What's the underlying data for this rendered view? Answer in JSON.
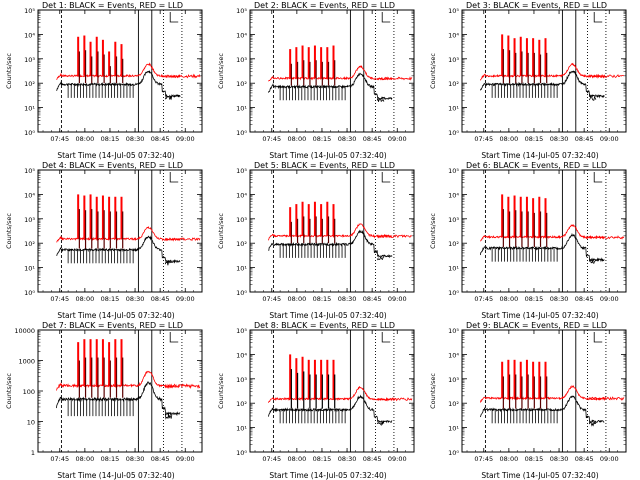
{
  "figure": {
    "xlabel": "Start Time (14-Jul-05 07:32:40)",
    "ylabel": "Counts/sec",
    "x_tick_labels": [
      "07:45",
      "08:00",
      "08:15",
      "08:30",
      "08:45",
      "09:00"
    ],
    "y_tick_labels_exp": [
      "10⁰",
      "10¹",
      "10²",
      "10³",
      "10⁴",
      "10⁵"
    ],
    "y_tick_labels_plain": [
      "1",
      "10",
      "100",
      "1000",
      "10000"
    ],
    "colors": {
      "events": "#000000",
      "lld": "#ff0000",
      "axes": "#000000"
    }
  },
  "chart_data": [
    {
      "type": "line",
      "title": "Det 1: BLACK = Events, RED = LLD",
      "ylog": true,
      "ylim": [
        1,
        100000
      ],
      "xlim": [
        "07:32",
        "09:10"
      ],
      "events_base": 100,
      "lld_base": 200,
      "peaks": [
        8000,
        9000,
        5000,
        8000,
        6000,
        2000,
        5000,
        4000
      ],
      "spike_style": "red",
      "series": [
        {
          "name": "Events",
          "color": "#000000"
        },
        {
          "name": "LLD",
          "color": "#ff0000"
        }
      ]
    },
    {
      "type": "line",
      "title": "Det 2: BLACK = Events, RED = LLD",
      "ylog": true,
      "ylim": [
        1,
        100000
      ],
      "xlim": [
        "07:32",
        "09:10"
      ],
      "events_base": 80,
      "lld_base": 160,
      "peaks": [
        2500,
        3000,
        3500,
        3000,
        3500,
        3000,
        3000,
        3500
      ],
      "spike_style": "red",
      "series": [
        {
          "name": "Events",
          "color": "#000000"
        },
        {
          "name": "LLD",
          "color": "#ff0000"
        }
      ]
    },
    {
      "type": "line",
      "title": "Det 3: BLACK = Events, RED = LLD",
      "ylog": true,
      "ylim": [
        1,
        100000
      ],
      "xlim": [
        "07:32",
        "09:10"
      ],
      "events_base": 100,
      "lld_base": 200,
      "peaks": [
        10000,
        9000,
        7000,
        8000,
        7000,
        7000,
        6000,
        7000
      ],
      "spike_style": "red",
      "series": [
        {
          "name": "Events",
          "color": "#000000"
        },
        {
          "name": "LLD",
          "color": "#ff0000"
        }
      ]
    },
    {
      "type": "line",
      "title": "Det 4: BLACK = Events, RED = LLD",
      "ylog": true,
      "ylim": [
        1,
        100000
      ],
      "xlim": [
        "07:32",
        "09:10"
      ],
      "events_base": 60,
      "lld_base": 150,
      "peaks": [
        10000,
        9000,
        10000,
        8000,
        9000,
        8000,
        8000,
        8000
      ],
      "spike_style": "red",
      "series": [
        {
          "name": "Events",
          "color": "#000000"
        },
        {
          "name": "LLD",
          "color": "#ff0000"
        }
      ]
    },
    {
      "type": "line",
      "title": "Det 5: BLACK = Events, RED = LLD",
      "ylog": true,
      "ylim": [
        1,
        100000
      ],
      "xlim": [
        "07:32",
        "09:10"
      ],
      "events_base": 100,
      "lld_base": 200,
      "peaks": [
        3000,
        4000,
        5000,
        4000,
        5000,
        4000,
        5000,
        4000
      ],
      "spike_style": "red",
      "series": [
        {
          "name": "Events",
          "color": "#000000"
        },
        {
          "name": "LLD",
          "color": "#ff0000"
        }
      ]
    },
    {
      "type": "line",
      "title": "Det 6: BLACK = Events, RED = LLD",
      "ylog": true,
      "ylim": [
        1,
        100000
      ],
      "xlim": [
        "07:32",
        "09:10"
      ],
      "events_base": 70,
      "lld_base": 180,
      "peaks": [
        10000,
        8000,
        9000,
        8000,
        8000,
        7000,
        8000,
        7000
      ],
      "spike_style": "red",
      "series": [
        {
          "name": "Events",
          "color": "#000000"
        },
        {
          "name": "LLD",
          "color": "#ff0000"
        }
      ]
    },
    {
      "type": "line",
      "title": "Det 7: BLACK = Events, RED = LLD",
      "ylog": true,
      "ylim": [
        1,
        10000
      ],
      "xlim": [
        "07:32",
        "09:10"
      ],
      "events_base": 60,
      "lld_base": 150,
      "peaks": [
        4000,
        5000,
        5000,
        5000,
        5000,
        4000,
        5000,
        5000
      ],
      "spike_style": "red",
      "series": [
        {
          "name": "Events",
          "color": "#000000"
        },
        {
          "name": "LLD",
          "color": "#ff0000"
        }
      ]
    },
    {
      "type": "line",
      "title": "Det 8: BLACK = Events, RED = LLD",
      "ylog": true,
      "ylim": [
        1,
        100000
      ],
      "xlim": [
        "07:32",
        "09:10"
      ],
      "events_base": 60,
      "lld_base": 150,
      "peaks": [
        10000,
        7000,
        8000,
        6000,
        6000,
        6000,
        6000,
        6000
      ],
      "spike_style": "dark",
      "series": [
        {
          "name": "Events",
          "color": "#000000"
        },
        {
          "name": "LLD",
          "color": "#ff0000"
        }
      ]
    },
    {
      "type": "line",
      "title": "Det 9: BLACK = Events, RED = LLD",
      "ylog": true,
      "ylim": [
        1,
        100000
      ],
      "xlim": [
        "07:32",
        "09:10"
      ],
      "events_base": 60,
      "lld_base": 160,
      "peaks": [
        5000,
        6000,
        6000,
        5000,
        6000,
        5000,
        5000,
        5000
      ],
      "spike_style": "red",
      "series": [
        {
          "name": "Events",
          "color": "#000000"
        },
        {
          "name": "LLD",
          "color": "#ff0000"
        }
      ]
    }
  ]
}
